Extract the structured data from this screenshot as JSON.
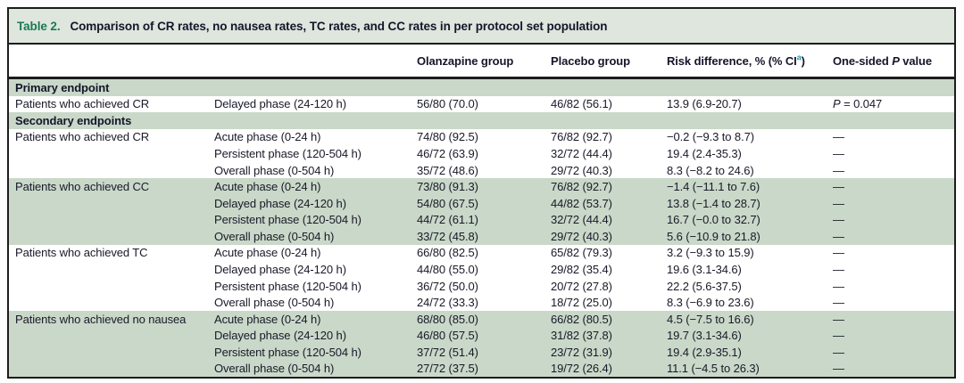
{
  "caption": {
    "label": "Table 2.",
    "title": "Comparison of CR rates, no nausea rates, TC rates, and CC rates in per protocol set population"
  },
  "header": {
    "olanzapine": "Olanzapine group",
    "placebo": "Placebo group",
    "risk_pre": "Risk difference, % (% CI",
    "risk_sup": "a",
    "risk_post": ")",
    "p_pre": "One-sided ",
    "p_italic": "P",
    "p_post": " value"
  },
  "colors": {
    "caption_bg": "#dee6dd",
    "band_green": "#c9d8c8",
    "accent_green": "#1b7a52",
    "sup_teal": "#2a91ad",
    "text": "#15152a",
    "border": "#1c1c1c"
  },
  "rows": [
    {
      "type": "section",
      "label": "Primary endpoint"
    },
    {
      "type": "data",
      "band": "white",
      "endpoint": "Patients who achieved CR",
      "phase": "Delayed phase (24-120 h)",
      "olanzapine": "56/80 (70.0)",
      "placebo": "46/82 (56.1)",
      "risk": "13.9 (6.9-20.7)",
      "p": "P = 0.047"
    },
    {
      "type": "section",
      "label": "Secondary endpoints"
    },
    {
      "type": "data",
      "band": "white",
      "endpoint": "Patients who achieved CR",
      "phase": "Acute phase (0-24 h)",
      "olanzapine": "74/80 (92.5)",
      "placebo": "76/82 (92.7)",
      "risk": "−0.2 (−9.3 to 8.7)",
      "p": "—"
    },
    {
      "type": "data",
      "band": "white",
      "endpoint": "",
      "phase": "Persistent phase (120-504 h)",
      "olanzapine": "46/72 (63.9)",
      "placebo": "32/72 (44.4)",
      "risk": "19.4 (2.4-35.3)",
      "p": "—"
    },
    {
      "type": "data",
      "band": "white",
      "endpoint": "",
      "phase": "Overall phase (0-504 h)",
      "olanzapine": "35/72 (48.6)",
      "placebo": "29/72 (40.3)",
      "risk": "8.3 (−8.2 to 24.6)",
      "p": "—"
    },
    {
      "type": "data",
      "band": "green",
      "endpoint": "Patients who achieved CC",
      "phase": "Acute phase (0-24 h)",
      "olanzapine": "73/80 (91.3)",
      "placebo": "76/82 (92.7)",
      "risk": "−1.4 (−11.1 to 7.6)",
      "p": "—"
    },
    {
      "type": "data",
      "band": "green",
      "endpoint": "",
      "phase": "Delayed phase (24-120 h)",
      "olanzapine": "54/80 (67.5)",
      "placebo": "44/82 (53.7)",
      "risk": "13.8 (−1.4 to 28.7)",
      "p": "—"
    },
    {
      "type": "data",
      "band": "green",
      "endpoint": "",
      "phase": "Persistent phase (120-504 h)",
      "olanzapine": "44/72 (61.1)",
      "placebo": "32/72 (44.4)",
      "risk": "16.7 (−0.0 to 32.7)",
      "p": "—"
    },
    {
      "type": "data",
      "band": "green",
      "endpoint": "",
      "phase": "Overall phase (0-504 h)",
      "olanzapine": "33/72 (45.8)",
      "placebo": "29/72 (40.3)",
      "risk": "5.6 (−10.9 to 21.8)",
      "p": "—"
    },
    {
      "type": "data",
      "band": "white",
      "endpoint": "Patients who achieved TC",
      "phase": "Acute phase (0-24 h)",
      "olanzapine": "66/80 (82.5)",
      "placebo": "65/82 (79.3)",
      "risk": "3.2 (−9.3 to 15.9)",
      "p": "—"
    },
    {
      "type": "data",
      "band": "white",
      "endpoint": "",
      "phase": "Delayed phase (24-120 h)",
      "olanzapine": "44/80 (55.0)",
      "placebo": "29/82 (35.4)",
      "risk": "19.6 (3.1-34.6)",
      "p": "—"
    },
    {
      "type": "data",
      "band": "white",
      "endpoint": "",
      "phase": "Persistent phase (120-504 h)",
      "olanzapine": "36/72 (50.0)",
      "placebo": "20/72 (27.8)",
      "risk": "22.2 (5.6-37.5)",
      "p": "—"
    },
    {
      "type": "data",
      "band": "white",
      "endpoint": "",
      "phase": "Overall phase (0-504 h)",
      "olanzapine": "24/72 (33.3)",
      "placebo": "18/72 (25.0)",
      "risk": "8.3 (−6.9 to 23.6)",
      "p": "—"
    },
    {
      "type": "data",
      "band": "green",
      "endpoint": "Patients who achieved no nausea",
      "phase": "Acute phase (0-24 h)",
      "olanzapine": "68/80 (85.0)",
      "placebo": "66/82 (80.5)",
      "risk": "4.5 (−7.5 to 16.6)",
      "p": "—"
    },
    {
      "type": "data",
      "band": "green",
      "endpoint": "",
      "phase": "Delayed phase (24-120 h)",
      "olanzapine": "46/80 (57.5)",
      "placebo": "31/82 (37.8)",
      "risk": "19.7 (3.1-34.6)",
      "p": "—"
    },
    {
      "type": "data",
      "band": "green",
      "endpoint": "",
      "phase": "Persistent phase (120-504 h)",
      "olanzapine": "37/72 (51.4)",
      "placebo": "23/72 (31.9)",
      "risk": "19.4 (2.9-35.1)",
      "p": "—"
    },
    {
      "type": "data",
      "band": "green",
      "endpoint": "",
      "phase": "Overall phase (0-504 h)",
      "olanzapine": "27/72 (37.5)",
      "placebo": "19/72 (26.4)",
      "risk": "11.1 (−4.5 to 26.3)",
      "p": "—"
    }
  ]
}
